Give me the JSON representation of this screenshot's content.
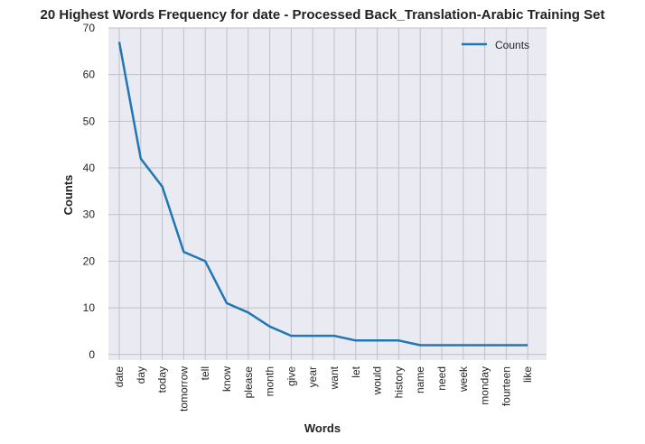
{
  "chart_data": {
    "type": "line",
    "title": "20 Highest Words Frequency for date - Processed Back_Translation-Arabic Training Set",
    "xlabel": "Words",
    "ylabel": "Counts",
    "categories": [
      "date",
      "day",
      "today",
      "tomorrow",
      "tell",
      "know",
      "please",
      "month",
      "give",
      "year",
      "want",
      "let",
      "would",
      "history",
      "name",
      "need",
      "week",
      "monday",
      "fourteen",
      "like"
    ],
    "series": [
      {
        "name": "Counts",
        "values": [
          67,
          42,
          36,
          22,
          20,
          11,
          9,
          6,
          4,
          4,
          4,
          3,
          3,
          3,
          2,
          2,
          2,
          2,
          2,
          2
        ]
      }
    ],
    "ylim": [
      -1.2,
      70
    ],
    "yticks": [
      0,
      10,
      20,
      30,
      40,
      50,
      60,
      70
    ],
    "grid": true,
    "legend_position": "top-right",
    "colors": {
      "line": "#1f77b4",
      "plot_bg": "#eaeaf2",
      "grid": "#c0c0c8"
    }
  }
}
